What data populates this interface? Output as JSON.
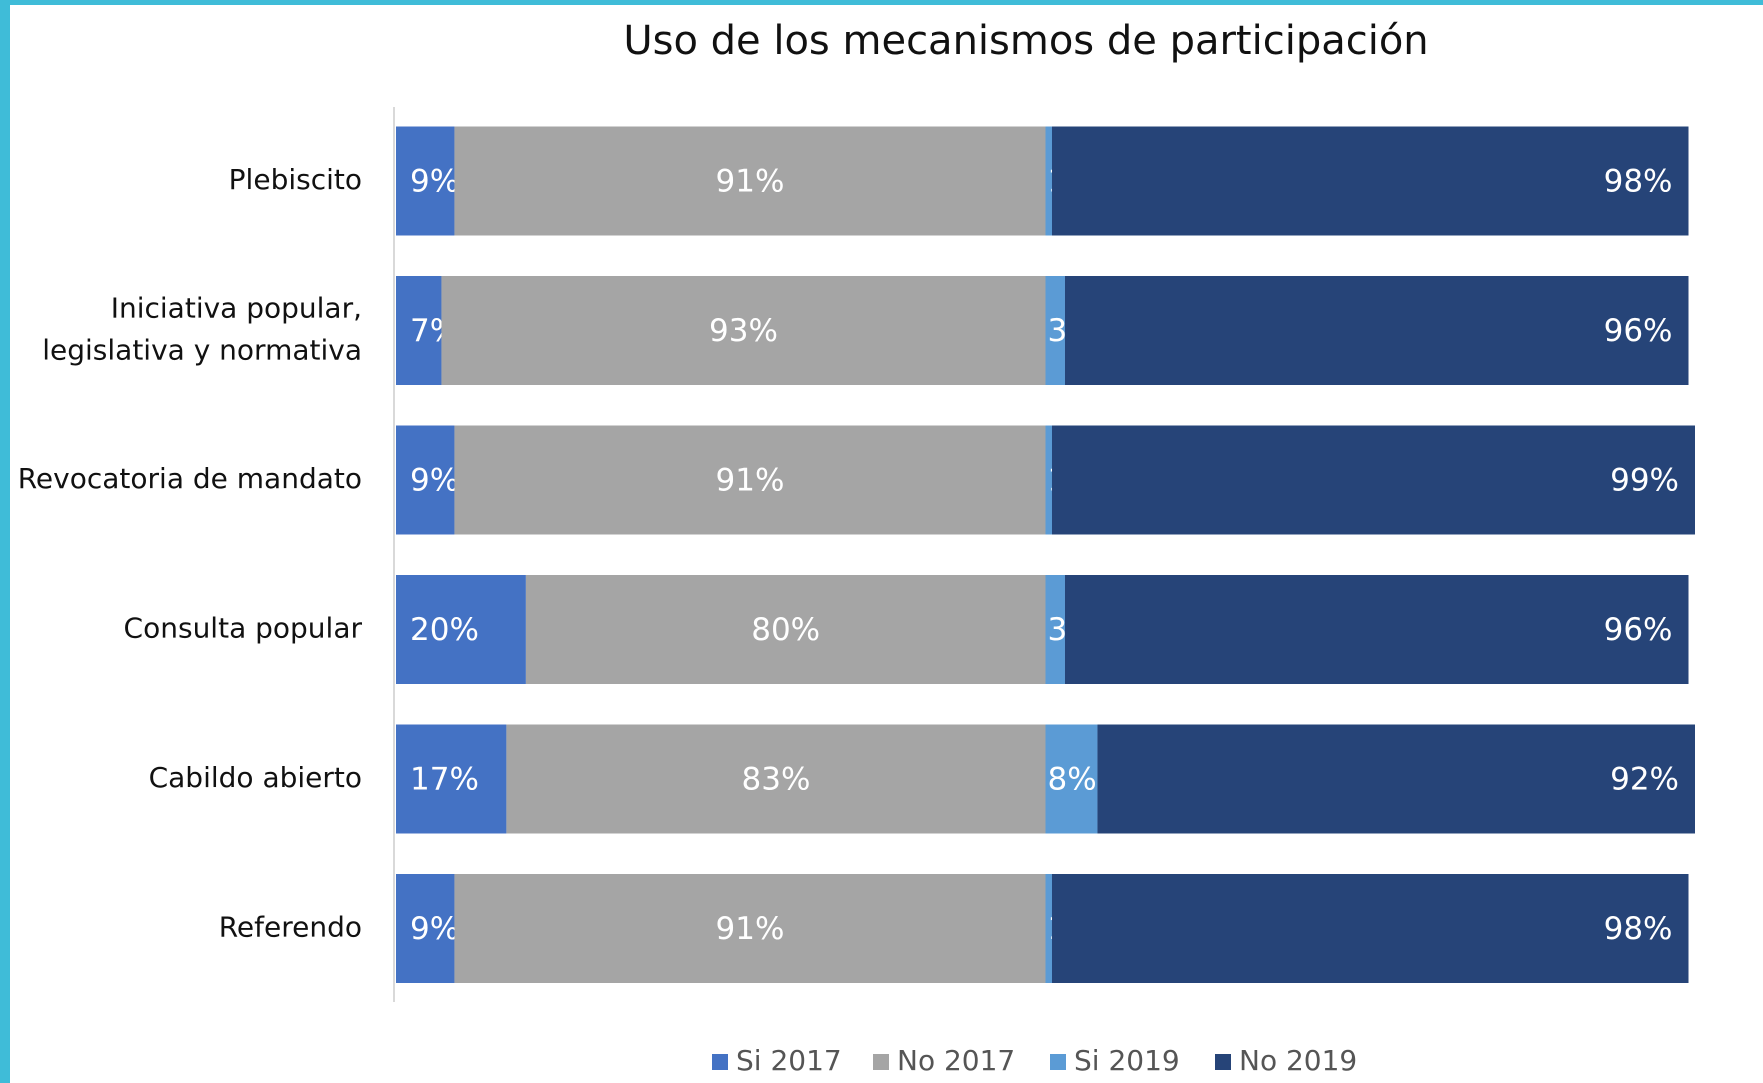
{
  "chart_data": {
    "type": "stacked-bar-horizontal",
    "title": "Uso de los mecanismos de participación",
    "categories": [
      "Plebiscito",
      "Iniciativa popular,\nlegislativa y normativa",
      "Revocatoria de mandato",
      "Consulta popular",
      "Cabildo abierto",
      "Referendo"
    ],
    "series": [
      {
        "name": "Si 2017",
        "color": "#4472c4",
        "values": [
          9,
          7,
          9,
          20,
          17,
          9
        ],
        "value_labels": [
          "9%",
          "7%",
          "9%",
          "20%",
          "17%",
          "9%"
        ]
      },
      {
        "name": "No 2017",
        "color": "#a5a5a5",
        "values": [
          91,
          93,
          91,
          80,
          83,
          91
        ],
        "value_labels": [
          "91%",
          "93%",
          "91%",
          "80%",
          "83%",
          "91%"
        ]
      },
      {
        "name": "Si 2019",
        "color": "#5b9bd5",
        "values": [
          1,
          3,
          1,
          3,
          8,
          1
        ],
        "value_labels": [
          "1%",
          "3%",
          "1%",
          "3%",
          "8%",
          "1%"
        ]
      },
      {
        "name": "No 2019",
        "color": "#264478",
        "values": [
          98,
          96,
          99,
          96,
          92,
          98
        ],
        "value_labels": [
          "98%",
          "96%",
          "99%",
          "96%",
          "92%",
          "98%"
        ]
      }
    ],
    "legend": "bottom"
  }
}
